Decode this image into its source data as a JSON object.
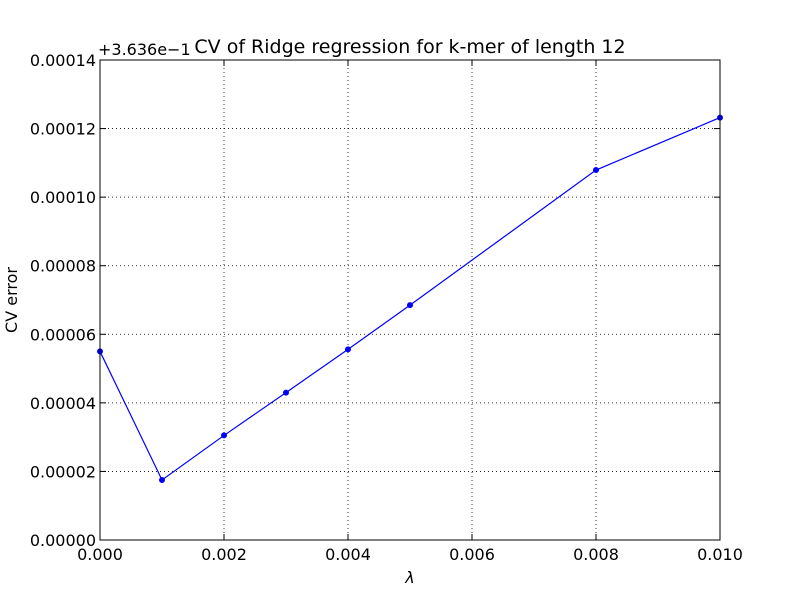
{
  "chart_data": {
    "type": "line",
    "title": "CV of Ridge regression for k-mer of length 12",
    "xlabel": "λ",
    "ylabel": "CV error",
    "y_offset_label": "+3.636e−1",
    "xlim": [
      0.0,
      0.01
    ],
    "ylim": [
      0.0,
      0.00014
    ],
    "x_ticks": [
      "0.000",
      "0.002",
      "0.004",
      "0.006",
      "0.008",
      "0.010"
    ],
    "y_ticks": [
      "0.00000",
      "0.00002",
      "0.00004",
      "0.00006",
      "0.00008",
      "0.00010",
      "0.00012",
      "0.00014"
    ],
    "grid": true,
    "series": [
      {
        "color": "#0000ff",
        "x": [
          0.0,
          0.001,
          0.002,
          0.003,
          0.004,
          0.005,
          0.008,
          0.01
        ],
        "y": [
          5.5e-05,
          1.75e-05,
          3.05e-05,
          4.3e-05,
          5.56e-05,
          6.85e-05,
          0.0001079,
          0.0001232
        ]
      }
    ]
  }
}
